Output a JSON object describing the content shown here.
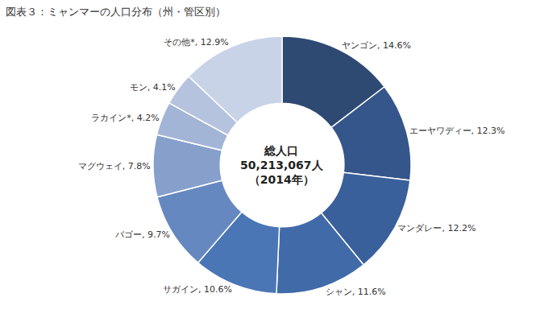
{
  "chart_data": {
    "type": "pie",
    "title": "図表３：ミャンマーの人口分布（州・管区別）",
    "categories": [
      "ヤンゴン",
      "エーヤワディー",
      "マンダレー",
      "シャン",
      "サガイン",
      "バゴー",
      "マグウェイ",
      "ラカイン*",
      "モン",
      "その他*"
    ],
    "values": [
      14.6,
      12.3,
      12.2,
      11.6,
      10.6,
      9.7,
      7.8,
      4.2,
      4.1,
      12.9
    ],
    "value_labels": [
      "ヤンゴン, 14.6%",
      "エーヤワディー, 12.3%",
      "マンダレー, 12.2%",
      "シャン, 11.6%",
      "サガイン, 10.6%",
      "バゴー, 9.7%",
      "マグウェイ, 7.8%",
      "ラカイン*, 4.2%",
      "モン, 4.1%",
      "その他*, 12.9%"
    ],
    "colors": [
      "#2E4A73",
      "#35568A",
      "#3A609B",
      "#416AA8",
      "#4A76B5",
      "#6688C0",
      "#869FCB",
      "#A3B5D6",
      "#B5C3DE",
      "#C9D3E8"
    ],
    "data_labels": true,
    "annotations": [
      "総人口",
      "50,213,067人",
      "（2014年）"
    ]
  }
}
